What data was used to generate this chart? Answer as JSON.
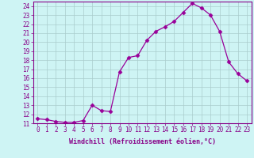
{
  "x": [
    0,
    1,
    2,
    3,
    4,
    5,
    6,
    7,
    8,
    9,
    10,
    11,
    12,
    13,
    14,
    15,
    16,
    17,
    18,
    19,
    20,
    21,
    22,
    23
  ],
  "y": [
    11.5,
    11.4,
    11.2,
    11.1,
    11.1,
    11.3,
    13.0,
    12.4,
    12.3,
    16.7,
    18.3,
    18.5,
    20.2,
    21.2,
    21.7,
    22.3,
    23.3,
    24.3,
    23.8,
    23.0,
    21.2,
    17.8,
    16.5,
    15.7
  ],
  "line_color": "#990099",
  "marker": "D",
  "marker_size": 2.5,
  "bg_color": "#cef4f4",
  "grid_color": "#aacccc",
  "xlabel": "Windchill (Refroidissement éolien,°C)",
  "ylim": [
    11,
    24.5
  ],
  "xlim": [
    -0.5,
    23.5
  ],
  "yticks": [
    11,
    12,
    13,
    14,
    15,
    16,
    17,
    18,
    19,
    20,
    21,
    22,
    23,
    24
  ],
  "xticks": [
    0,
    1,
    2,
    3,
    4,
    5,
    6,
    7,
    8,
    9,
    10,
    11,
    12,
    13,
    14,
    15,
    16,
    17,
    18,
    19,
    20,
    21,
    22,
    23
  ],
  "xlabel_color": "#880088",
  "tick_color": "#880088",
  "axis_color": "#880088",
  "tick_fontsize": 5.5,
  "xlabel_fontsize": 6.0
}
